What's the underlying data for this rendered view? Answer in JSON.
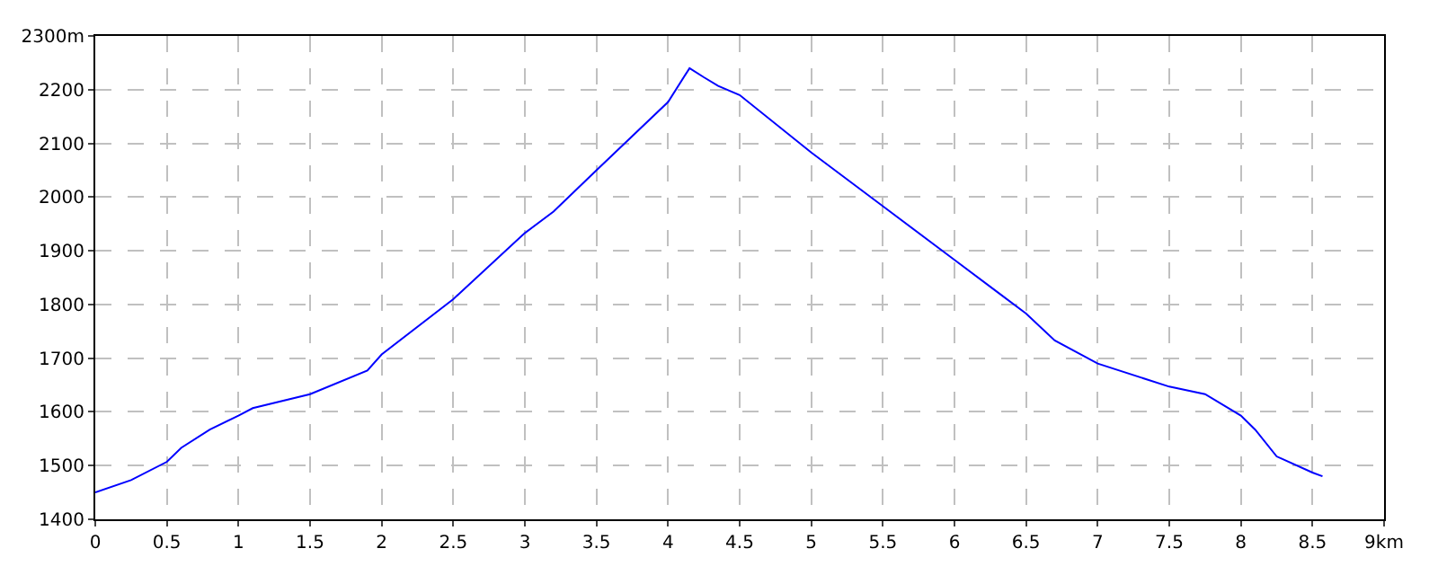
{
  "chart_data": {
    "type": "line",
    "line_style": "solid",
    "marker": "none",
    "grid": true,
    "legend": false,
    "x": [
      0,
      0.25,
      0.5,
      0.6,
      0.8,
      1.0,
      1.1,
      1.5,
      1.9,
      2.0,
      2.5,
      3.0,
      3.2,
      3.5,
      4.0,
      4.15,
      4.25,
      4.35,
      4.5,
      5.0,
      5.5,
      6.0,
      6.3,
      6.5,
      6.7,
      7.0,
      7.5,
      7.75,
      8.0,
      8.1,
      8.25,
      8.5,
      8.57
    ],
    "series": [
      {
        "color": "#0000ff",
        "values": [
          1450,
          1473,
          1507,
          1533,
          1567,
          1593,
          1607,
          1633,
          1677,
          1707,
          1810,
          1933,
          1973,
          2050,
          2177,
          2240,
          2223,
          2207,
          2190,
          2083,
          1983,
          1883,
          1823,
          1783,
          1733,
          1690,
          1647,
          1633,
          1593,
          1567,
          1517,
          1487,
          1480
        ]
      }
    ],
    "xlim": [
      0,
      9
    ],
    "xticks": [
      0,
      0.5,
      1,
      1.5,
      2,
      2.5,
      3,
      3.5,
      4,
      4.5,
      5,
      5.5,
      6,
      6.5,
      7,
      7.5,
      8,
      8.5,
      {
        "value": 9,
        "label": "9km"
      }
    ],
    "ylim": [
      1400,
      2300
    ],
    "yticks": [
      1400,
      1500,
      1600,
      1700,
      1800,
      1900,
      2000,
      2100,
      2200,
      {
        "value": 2300,
        "label": "2300m"
      }
    ]
  }
}
